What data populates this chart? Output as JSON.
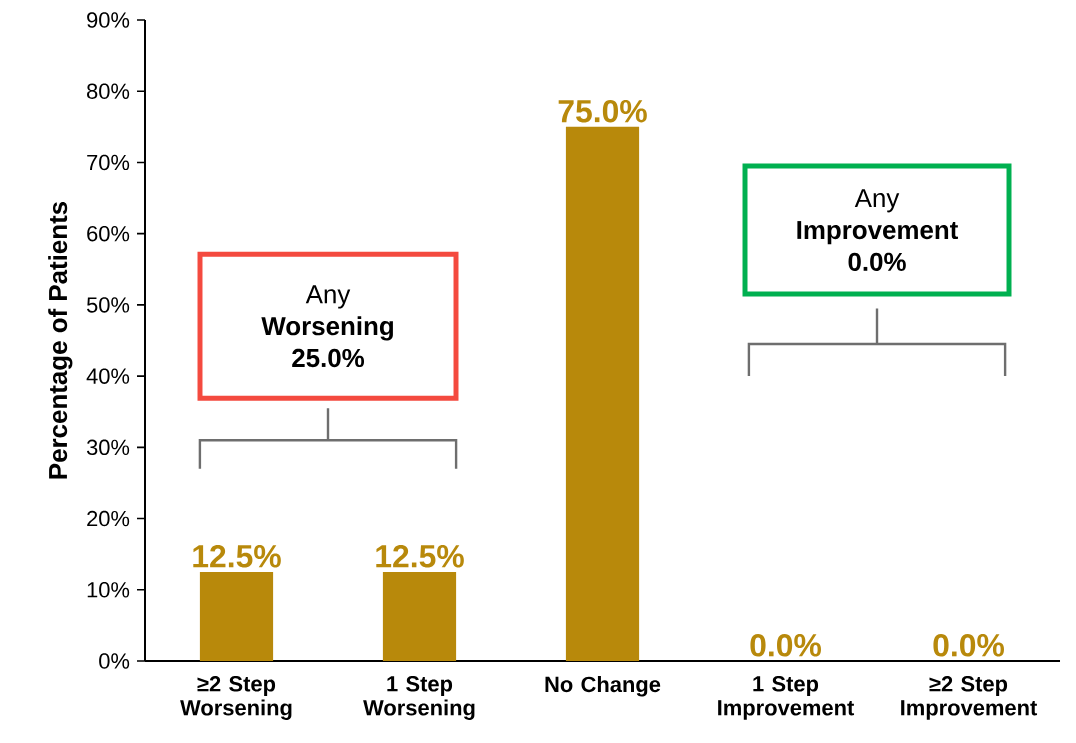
{
  "chart_data": {
    "type": "bar",
    "ylabel": "Percentage of Patients",
    "categories": [
      "≥2 Step Worsening",
      "1 Step Worsening",
      "No Change",
      "1 Step Improvement",
      "≥2 Step Improvement"
    ],
    "values": [
      12.5,
      12.5,
      75.0,
      0.0,
      0.0
    ],
    "value_labels": [
      "12.5%",
      "12.5%",
      "75.0%",
      "0.0%",
      "0.0%"
    ],
    "color": "#b8890b",
    "ylim": [
      0,
      90
    ],
    "yticks": [
      {
        "value": 0,
        "label": "0%"
      },
      {
        "value": 10,
        "label": "10%"
      },
      {
        "value": 20,
        "label": "20%"
      },
      {
        "value": 30,
        "label": "30%"
      },
      {
        "value": 40,
        "label": "40%"
      },
      {
        "value": 50,
        "label": "50%"
      },
      {
        "value": 60,
        "label": "60%"
      },
      {
        "value": 70,
        "label": "70%"
      },
      {
        "value": 80,
        "label": "80%"
      },
      {
        "value": 90,
        "label": "90%"
      }
    ],
    "grid": false,
    "annotations": [
      "Any **Worsening 25.0%**",
      "Any **Improvement 0.0%**"
    ]
  }
}
